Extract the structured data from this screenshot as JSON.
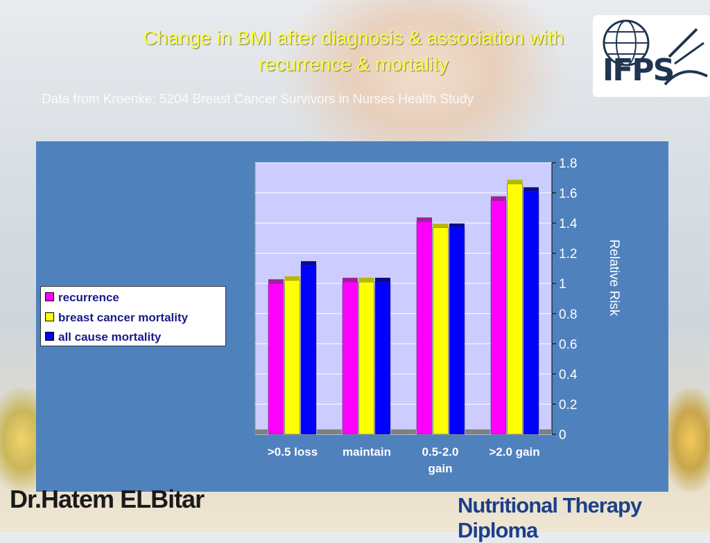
{
  "slide": {
    "title_line1": "Change in BMI after diagnosis & association with",
    "title_line2": "recurrence & mortality",
    "subtitle": "Data from Kroenke: 5204 Breast Cancer Survivors in Nurses Health Study",
    "logo_text": "IFPS",
    "footer_left": "Dr.Hatem ELBitar",
    "footer_right": "Nutritional Therapy Diploma"
  },
  "colors": {
    "panel": "#4f81bd",
    "plot_bg": "#ccccff",
    "title": "#ffff33",
    "recurrence": "#ff00ff",
    "breast_cancer_mortality": "#ffff00",
    "all_cause_mortality": "#0000ff"
  },
  "chart_data": {
    "type": "bar",
    "title": "",
    "xlabel": "",
    "ylabel": "Relative Risk",
    "categories": [
      ">0.5 loss",
      "maintain",
      "0.5-2.0 gain",
      ">2.0 gain"
    ],
    "category_lines": [
      [
        ">0.5 loss"
      ],
      [
        "maintain"
      ],
      [
        "0.5-2.0",
        "gain"
      ],
      [
        ">2.0 gain"
      ]
    ],
    "series": [
      {
        "name": "recurrence",
        "values": [
          1.0,
          1.01,
          1.41,
          1.55
        ]
      },
      {
        "name": "breast cancer mortality",
        "values": [
          1.02,
          1.01,
          1.37,
          1.66
        ]
      },
      {
        "name": "all cause mortality",
        "values": [
          1.12,
          1.01,
          1.37,
          1.61
        ]
      }
    ],
    "ylim": [
      0,
      1.8
    ],
    "yticks": [
      "0",
      "0.2",
      "0.4",
      "0.6",
      "0.8",
      "1",
      "1.2",
      "1.4",
      "1.6",
      "1.8"
    ],
    "y_axis_side": "right",
    "grid": true,
    "legend_position": "left"
  }
}
